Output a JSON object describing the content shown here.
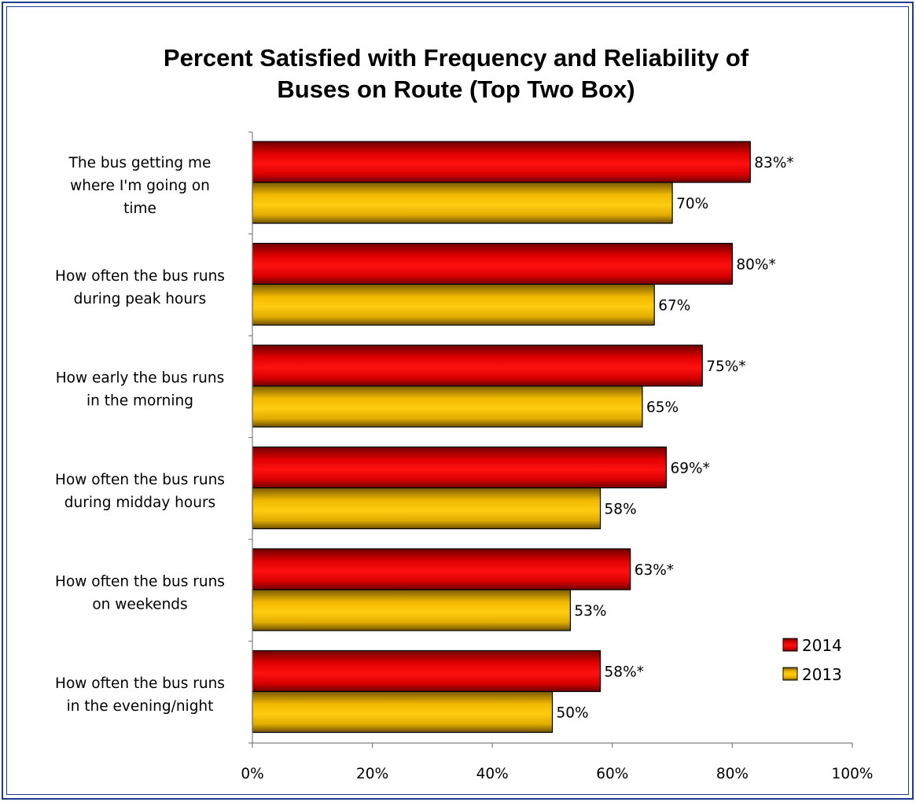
{
  "chart_data": {
    "type": "bar",
    "orientation": "horizontal",
    "title": "Percent Satisfied with Frequency and Reliability of Buses on Route (Top Two Box)",
    "title_lines": [
      "Percent Satisfied with Frequency and Reliability of",
      "Buses on Route (Top Two Box)"
    ],
    "categories": [
      [
        "The bus getting me",
        "where I'm going on",
        "time"
      ],
      [
        "How often the bus runs",
        "during peak hours"
      ],
      [
        "How early the bus runs",
        "in the morning"
      ],
      [
        "How often the bus runs",
        "during midday hours"
      ],
      [
        "How often the bus runs",
        "on weekends"
      ],
      [
        "How often the bus runs",
        "in the evening/night"
      ]
    ],
    "series": [
      {
        "name": "2014",
        "color": "#ff0000",
        "values": [
          83,
          80,
          75,
          69,
          63,
          58
        ],
        "labels": [
          "83%*",
          "80%*",
          "75%*",
          "69%*",
          "63%*",
          "58%*"
        ]
      },
      {
        "name": "2013",
        "color": "#ffc000",
        "values": [
          70,
          67,
          65,
          58,
          53,
          50
        ],
        "labels": [
          "70%",
          "67%",
          "65%",
          "58%",
          "53%",
          "50%"
        ]
      }
    ],
    "xlim": [
      0,
      100
    ],
    "x_ticks": [
      "0%",
      "20%",
      "40%",
      "60%",
      "80%",
      "100%"
    ],
    "x_tick_values": [
      0,
      20,
      40,
      60,
      80,
      100
    ],
    "legend_position": "bottom-right",
    "grid": false
  }
}
